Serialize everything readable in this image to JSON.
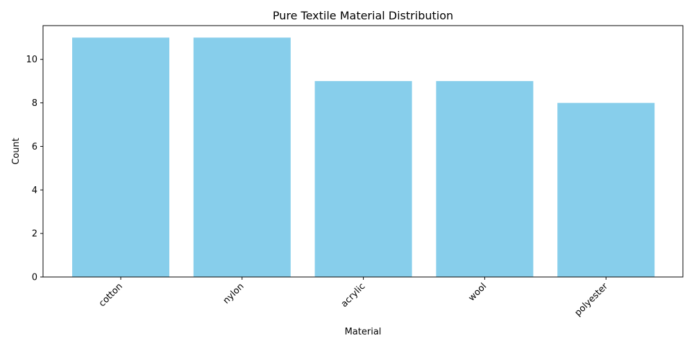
{
  "chart_data": {
    "type": "bar",
    "title": "Pure Textile Material Distribution",
    "xlabel": "Material",
    "ylabel": "Count",
    "categories": [
      "cotton",
      "nylon",
      "acrylic",
      "wool",
      "polyester"
    ],
    "values": [
      11,
      11,
      9,
      9,
      8
    ],
    "ylim": [
      0,
      11.55
    ],
    "yticks": [
      0,
      2,
      4,
      6,
      8,
      10
    ],
    "bar_color": "#87CEEB",
    "grid": false,
    "legend": "none"
  }
}
